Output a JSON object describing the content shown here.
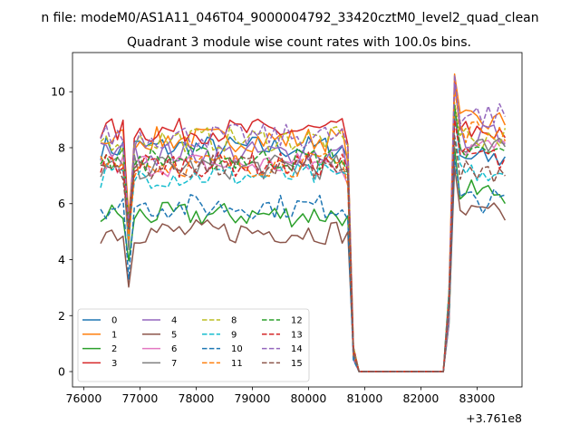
{
  "figure": {
    "suptitle": "n file: modeM0/AS1A11_046T04_9000004792_33420cztM0_level2_quad_clean",
    "title": "Quadrant 3 module wise count rates with 100.0s bins.",
    "offset_text": "+3.761e8"
  },
  "chart_data": {
    "type": "line",
    "title": "Quadrant 3 module wise count rates with 100.0s bins.",
    "xlabel": "",
    "ylabel": "",
    "xlim": [
      75800,
      83800
    ],
    "ylim": [
      -0.55,
      11.4
    ],
    "x_offset": 376100000,
    "x_ticks": [
      76000,
      77000,
      78000,
      79000,
      80000,
      81000,
      82000,
      83000
    ],
    "y_ticks": [
      0,
      2,
      4,
      6,
      8,
      10
    ],
    "legend_position": "lower-left",
    "grid": false,
    "colors": [
      "#1f77b4",
      "#ff7f0e",
      "#2ca02c",
      "#d62728",
      "#9467bd",
      "#8c564b",
      "#e377c2",
      "#7f7f7f",
      "#bcbd22",
      "#17becf"
    ],
    "series": [
      {
        "name": "0",
        "style": "solid"
      },
      {
        "name": "1",
        "style": "solid"
      },
      {
        "name": "2",
        "style": "solid"
      },
      {
        "name": "3",
        "style": "solid"
      },
      {
        "name": "4",
        "style": "solid"
      },
      {
        "name": "5",
        "style": "solid"
      },
      {
        "name": "6",
        "style": "solid"
      },
      {
        "name": "7",
        "style": "solid"
      },
      {
        "name": "8",
        "style": "dashed"
      },
      {
        "name": "9",
        "style": "dashed"
      },
      {
        "name": "10",
        "style": "dashed"
      },
      {
        "name": "11",
        "style": "dashed"
      },
      {
        "name": "12",
        "style": "dashed"
      },
      {
        "name": "13",
        "style": "dashed"
      },
      {
        "name": "14",
        "style": "dashed"
      },
      {
        "name": "15",
        "style": "dashed"
      }
    ],
    "series_levels": [
      {
        "name": "0",
        "plateau1": 8.0,
        "plateau2": 7.6
      },
      {
        "name": "1",
        "plateau1": 8.3,
        "plateau2": 8.9
      },
      {
        "name": "2",
        "plateau1": 5.6,
        "plateau2": 6.4
      },
      {
        "name": "3",
        "plateau1": 8.6,
        "plateau2": 8.6
      },
      {
        "name": "4",
        "plateau1": 7.8,
        "plateau2": 8.4
      },
      {
        "name": "5",
        "plateau1": 5.0,
        "plateau2": 5.6
      },
      {
        "name": "6",
        "plateau1": 7.4,
        "plateau2": 8.0
      },
      {
        "name": "7",
        "plateau1": 7.3,
        "plateau2": 7.9
      },
      {
        "name": "8",
        "plateau1": 8.3,
        "plateau2": 8.4
      },
      {
        "name": "9",
        "plateau1": 7.0,
        "plateau2": 7.2
      },
      {
        "name": "10",
        "plateau1": 5.9,
        "plateau2": 6.1
      },
      {
        "name": "11",
        "plateau1": 7.4,
        "plateau2": 8.6
      },
      {
        "name": "12",
        "plateau1": 7.6,
        "plateau2": 7.8
      },
      {
        "name": "13",
        "plateau1": 7.4,
        "plateau2": 7.6
      },
      {
        "name": "14",
        "plateau1": 8.4,
        "plateau2": 9.2
      },
      {
        "name": "15",
        "plateau1": 7.3,
        "plateau2": 7.2
      }
    ],
    "segments": {
      "x_start": 76300,
      "x_dip": 76800,
      "dip_factor": 0.55,
      "x_drop_start": 80700,
      "x_zero_start": 80900,
      "x_zero_end": 82400,
      "x_rise_end": 82600,
      "x_peak": 82600,
      "peak_value": 10.9,
      "x_end": 83500,
      "step": 100
    }
  }
}
